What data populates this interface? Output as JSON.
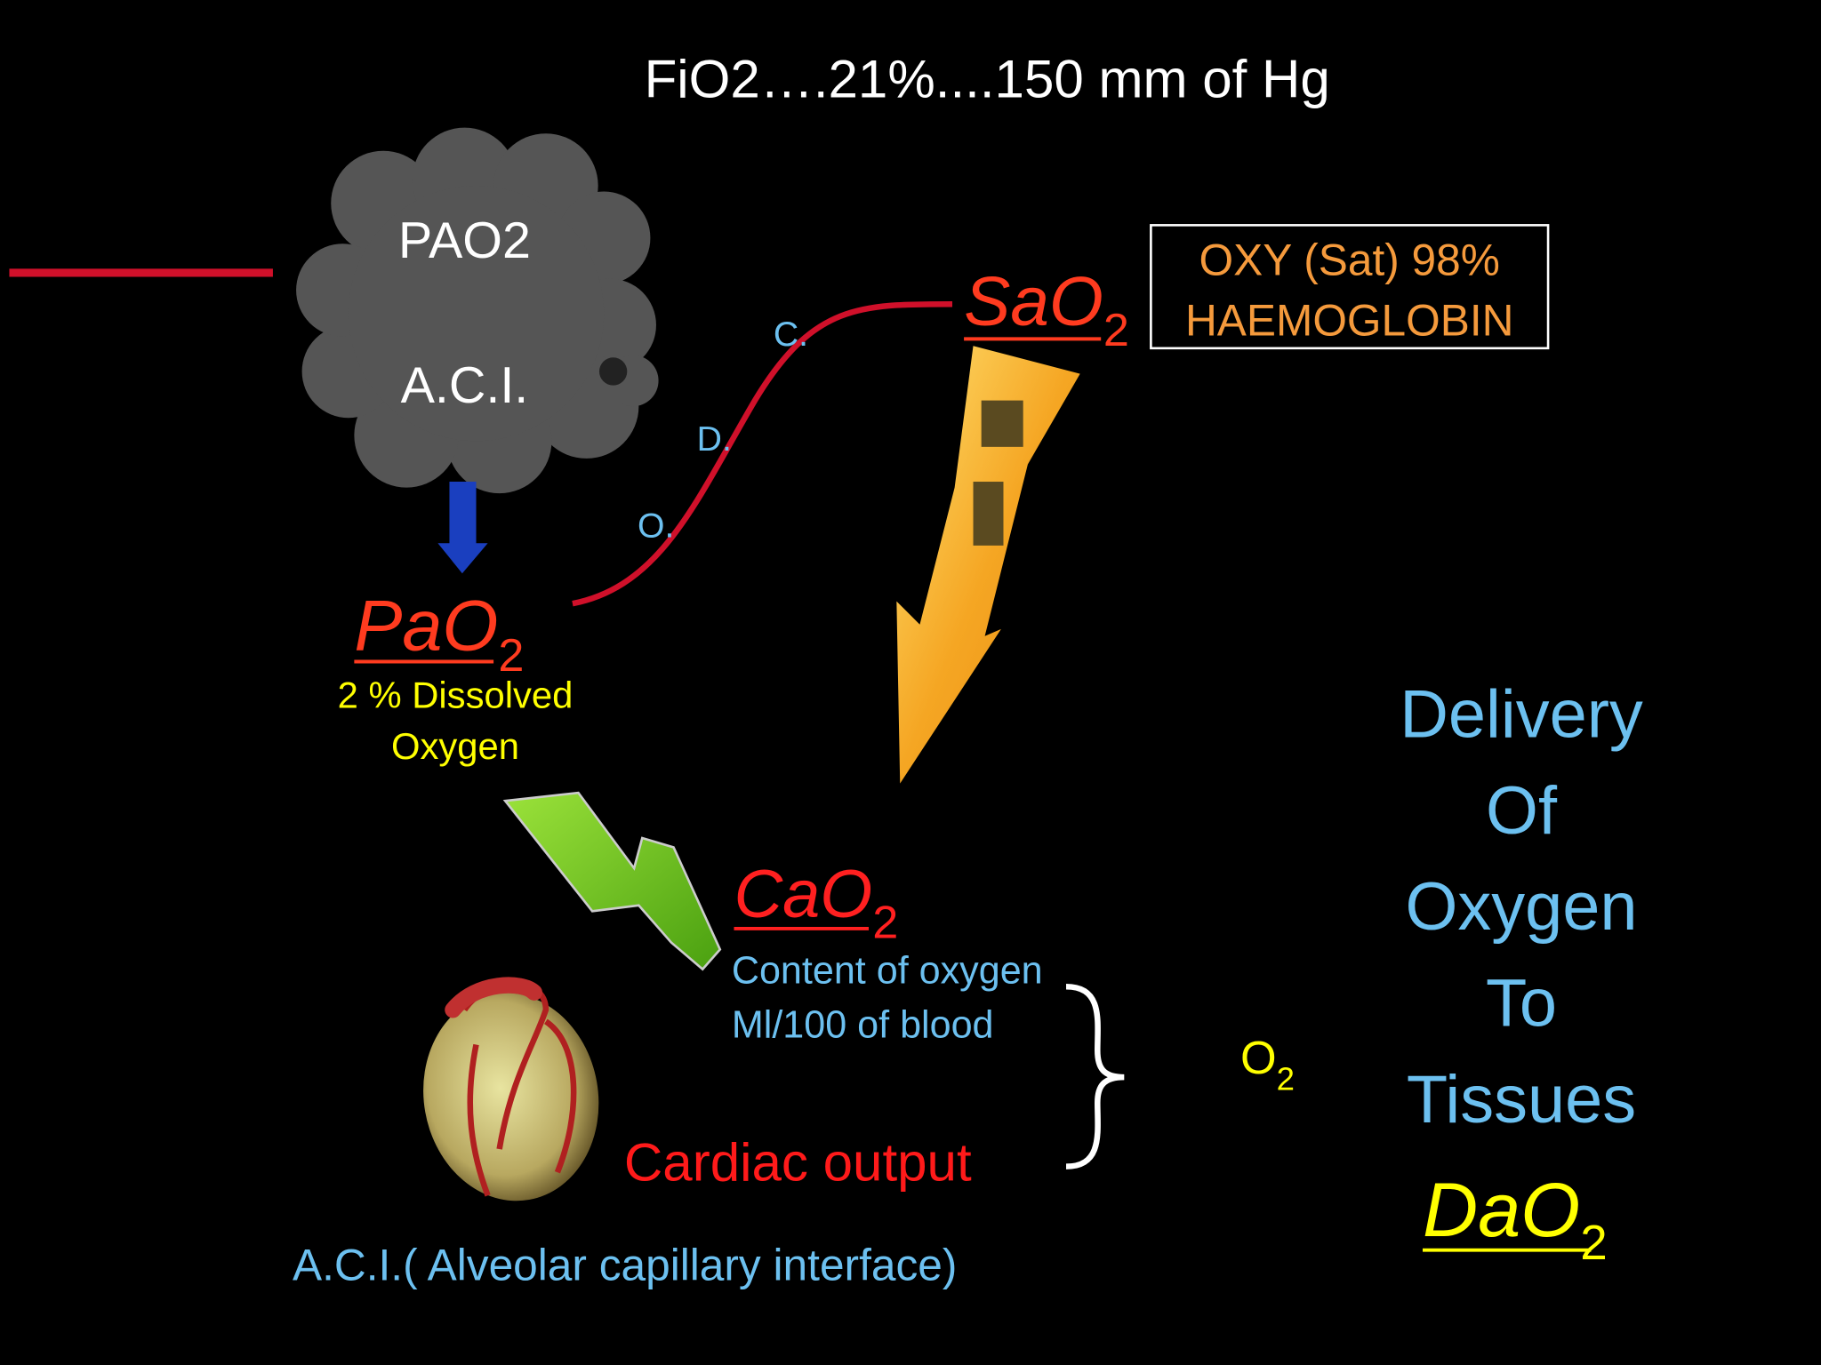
{
  "header": {
    "title": "FiO2….21%....150 mm of Hg"
  },
  "cloud": {
    "line1": "PAO2",
    "line2": "A.C.I."
  },
  "curve": {
    "labels": [
      "C.",
      "D.",
      "O."
    ]
  },
  "sao2": {
    "main": "SaO",
    "sub": "2"
  },
  "box": {
    "line1": "OXY (Sat) 98%",
    "line2": "HAEMOGLOBIN"
  },
  "pao2": {
    "main": "PaO",
    "sub": "2",
    "note1": "2 % Dissolved",
    "note2": "Oxygen"
  },
  "cao2": {
    "main": "CaO",
    "sub": "2",
    "note1": "Content of oxygen",
    "note2": "Ml/100 of blood"
  },
  "cardiac_output": "Cardiac output",
  "o2": {
    "main": "O",
    "sub": "2"
  },
  "delivery": {
    "lines": [
      "Delivery",
      "Of",
      "Oxygen",
      "To",
      "Tissues"
    ],
    "main": "DaO",
    "sub": "2"
  },
  "footer": "A.C.I.( Alveolar capillary interface)"
}
